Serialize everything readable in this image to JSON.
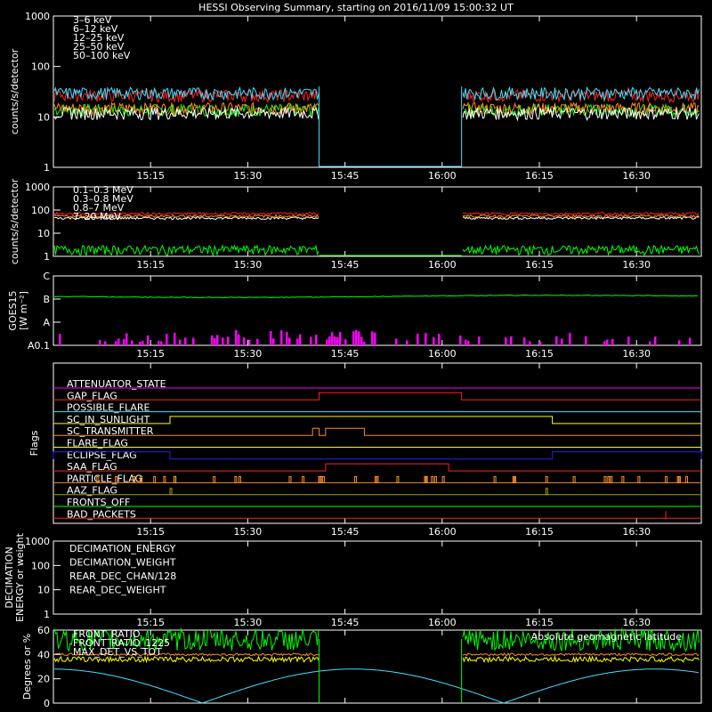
{
  "title": "HESSI Observing Summary, starting on 2016/11/09 15:00:32 UT",
  "time_ticks": [
    "15:15",
    "15:30",
    "15:45",
    "16:00",
    "16:15",
    "16:30"
  ],
  "colors": {
    "red": "#ff2020",
    "orange": "#ff8c1a",
    "yellow": "#ffff00",
    "green": "#00ff00",
    "cyan": "#40e0ff",
    "magenta": "#ff00ff",
    "blue": "#2020ff",
    "olive": "#a0a000",
    "white": "#ffffff"
  },
  "chart_data": [
    {
      "type": "line",
      "panel": "low-energy",
      "ylabel": "counts/s/detector",
      "ylog": true,
      "ylim": [
        1,
        1000
      ],
      "yticks": [
        "1000",
        "100",
        "10",
        "1"
      ],
      "gap": [
        "15:41",
        "16:03"
      ],
      "series": [
        {
          "name": "3–6 keV",
          "color": "red",
          "level": 27
        },
        {
          "name": "6–12 keV",
          "color": "orange",
          "level": 15
        },
        {
          "name": "12–25 keV",
          "color": "white",
          "level": 12
        },
        {
          "name": "25–50 keV",
          "color": "green",
          "level": 14
        },
        {
          "name": "50–100 keV",
          "color": "cyan",
          "level": 30
        }
      ]
    },
    {
      "type": "line",
      "panel": "high-energy",
      "ylabel": "counts/s/detector",
      "ylog": true,
      "ylim": [
        1,
        1000
      ],
      "yticks": [
        "1000",
        "100",
        "10",
        "1"
      ],
      "series": [
        {
          "name": "0.1–0.3 MeV",
          "color": "red",
          "level": 70
        },
        {
          "name": "0.3–0.8 MeV",
          "color": "orange",
          "level": 55
        },
        {
          "name": "0.8–7 MeV",
          "color": "white",
          "level": 45
        },
        {
          "name": "7–20 MeV",
          "color": "green",
          "level": 2
        }
      ]
    },
    {
      "type": "line",
      "panel": "goes",
      "ylabel": "GOES15",
      "ylabel2": "[W m⁻²]",
      "yticks": [
        "C",
        "B",
        "A",
        "A0.1"
      ],
      "level_class": "B-"
    },
    {
      "type": "table",
      "panel": "flags",
      "ylabel": "Flags",
      "flags": [
        {
          "name": "ATTENUATOR_STATE",
          "color": "magenta"
        },
        {
          "name": "GAP_FLAG",
          "color": "red",
          "on": [
            [
              "15:41",
              "16:03"
            ]
          ]
        },
        {
          "name": "POSSIBLE_FLARE",
          "color": "cyan"
        },
        {
          "name": "SC_IN_SUNLIGHT",
          "color": "yellow",
          "on": [
            [
              "15:18",
              "16:17"
            ]
          ]
        },
        {
          "name": "SC_TRANSMITTER",
          "color": "orange",
          "on": [
            [
              "15:40",
              "15:41"
            ],
            [
              "15:42",
              "15:48"
            ]
          ]
        },
        {
          "name": "FLARE_FLAG",
          "color": "yellow"
        },
        {
          "name": "ECLIPSE_FLAG",
          "color": "blue",
          "on": [
            [
              "15:00",
              "15:18"
            ],
            [
              "16:17",
              "16:40"
            ]
          ]
        },
        {
          "name": "SAA_FLAG",
          "color": "red",
          "on": [
            [
              "15:42",
              "16:01"
            ]
          ]
        },
        {
          "name": "PARTICLE_FLAG",
          "color": "orange"
        },
        {
          "name": "AAZ_FLAG",
          "color": "olive"
        },
        {
          "name": "FRONTS_OFF",
          "color": "green"
        },
        {
          "name": "BAD_PACKETS",
          "color": "red"
        }
      ]
    },
    {
      "type": "line",
      "panel": "decimation",
      "ylabel": "DECIMATION",
      "ylabel2": "ENERGY or weight",
      "ylog": true,
      "ylim": [
        1,
        1000
      ],
      "yticks": [
        "1000",
        "100",
        "10",
        "1"
      ],
      "series": [
        {
          "name": "DECIMATION_ENERGY",
          "color": "green"
        },
        {
          "name": "DECIMATION_WEIGHT",
          "color": "orange"
        },
        {
          "name": "REAR_DEC_CHAN/128",
          "color": "cyan"
        },
        {
          "name": "REAR_DEC_WEIGHT",
          "color": "olive"
        }
      ]
    },
    {
      "type": "line",
      "panel": "ratios",
      "ylabel": "Degrees or %",
      "ylim": [
        0,
        60
      ],
      "yticks": [
        "60",
        "40",
        "20",
        "0"
      ],
      "annotation": "Absolute geomagnetic latitude",
      "series": [
        {
          "name": "FRONT_RATIO",
          "color": "yellow",
          "level": 36
        },
        {
          "name": "FRONT_RATIO_1225",
          "color": "green",
          "level": 52
        },
        {
          "name": "MAX_DET_VS_TOT",
          "color": "orange",
          "level": 40
        }
      ]
    }
  ]
}
